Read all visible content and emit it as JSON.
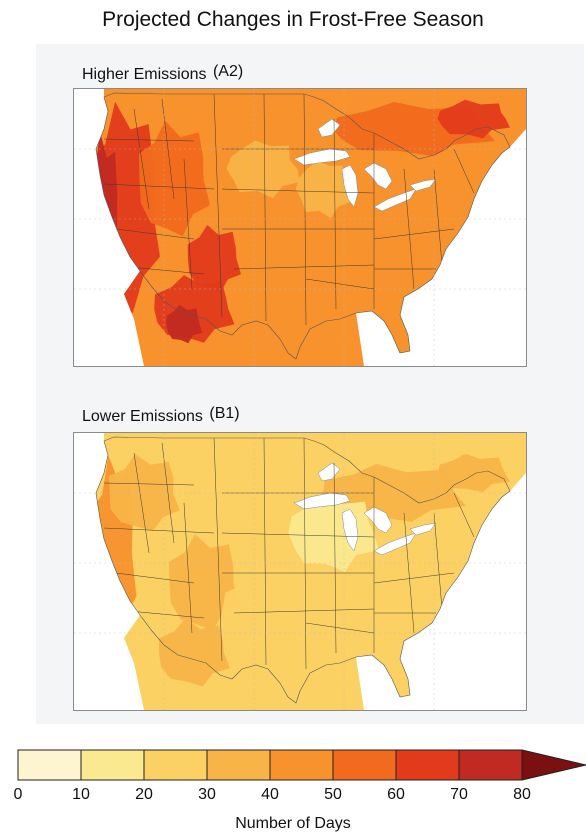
{
  "title": "Projected Changes in Frost-Free Season",
  "maps": [
    {
      "label": "Higher Emissions",
      "scenario": "(A2)"
    },
    {
      "label": "Lower Emissions",
      "scenario": "(B1)"
    }
  ],
  "legend": {
    "ticks": [
      "0",
      "10",
      "20",
      "30",
      "40",
      "50",
      "60",
      "70",
      "80"
    ],
    "colors": [
      "#fdf4d0",
      "#fbe98f",
      "#fbd163",
      "#f9b447",
      "#f7922d",
      "#f26a1e",
      "#e13b1c",
      "#c12a22"
    ],
    "overflow_color": "#7a1010",
    "units_label": "Number of Days"
  },
  "colors": {
    "ocean": "#ffffff",
    "lakes": "#ffffff",
    "borders": "#3a3a3a"
  }
}
